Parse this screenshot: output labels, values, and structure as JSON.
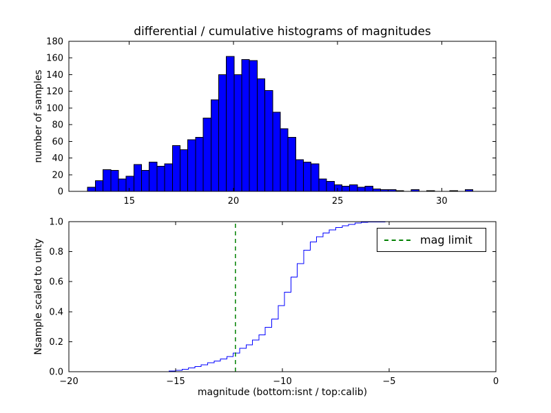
{
  "figure": {
    "background": "#ffffff"
  },
  "chart_data": [
    {
      "type": "bar",
      "title": "differential / cumulative histograms of magnitudes",
      "xlabel": "",
      "ylabel": "number of samples",
      "bin_start": 13.0,
      "bin_width": 0.37,
      "counts": [
        5,
        13,
        26,
        25,
        15,
        18,
        32,
        25,
        35,
        30,
        33,
        55,
        50,
        62,
        65,
        88,
        110,
        140,
        162,
        140,
        158,
        157,
        135,
        121,
        95,
        75,
        65,
        38,
        35,
        33,
        15,
        12,
        8,
        6,
        8,
        5,
        6,
        3,
        2,
        2,
        1,
        0,
        2,
        0,
        1,
        0,
        0,
        1,
        0,
        2
      ],
      "xlim": [
        12.1,
        32.6
      ],
      "ylim": [
        0,
        180
      ],
      "xticks": [
        15,
        20,
        25,
        30
      ],
      "yticks": [
        0,
        20,
        40,
        60,
        80,
        100,
        120,
        140,
        160,
        180
      ],
      "bar_color": "#0000ff",
      "bar_edge_color": "#000000",
      "grid": false
    },
    {
      "type": "line",
      "style": "step",
      "title": "",
      "xlabel": "magnitude (bottom:isnt / top:calib)",
      "ylabel": "Nsample scaled to unity",
      "x": [
        -20,
        -15.6,
        -15.3,
        -15.0,
        -14.7,
        -14.4,
        -14.1,
        -13.8,
        -13.5,
        -13.2,
        -12.9,
        -12.6,
        -12.3,
        -12.0,
        -11.7,
        -11.4,
        -11.1,
        -10.8,
        -10.5,
        -10.2,
        -9.9,
        -9.6,
        -9.3,
        -9.0,
        -8.7,
        -8.4,
        -8.1,
        -7.8,
        -7.5,
        -7.2,
        -6.9,
        -6.6,
        -6.3,
        -6.0,
        -5.2,
        -4.5,
        -1.2
      ],
      "y": [
        0,
        0,
        0.005,
        0.01,
        0.015,
        0.025,
        0.035,
        0.045,
        0.06,
        0.07,
        0.085,
        0.1,
        0.125,
        0.155,
        0.18,
        0.21,
        0.245,
        0.295,
        0.35,
        0.44,
        0.53,
        0.63,
        0.72,
        0.81,
        0.865,
        0.9,
        0.925,
        0.945,
        0.96,
        0.972,
        0.982,
        0.99,
        0.995,
        0.998,
        0.999,
        1.0,
        1.0
      ],
      "xlim": [
        -20,
        0
      ],
      "ylim": [
        0.0,
        1.0
      ],
      "xticks": [
        -20,
        -15,
        -10,
        -5,
        0
      ],
      "yticks": [
        0,
        0.2,
        0.4,
        0.6,
        0.8,
        1.0
      ],
      "ytick_labels": [
        "0.0",
        "0.2",
        "0.4",
        "0.6",
        "0.8",
        "1.0"
      ],
      "line_color": "#0000ff",
      "vline": {
        "x": -12.2,
        "color": "#008000",
        "style": "dashed",
        "label": "mag limit"
      },
      "legend": {
        "position": "upper right",
        "entries": [
          {
            "label": "mag limit",
            "color": "#008000",
            "style": "dashed"
          }
        ]
      },
      "grid": false
    }
  ]
}
